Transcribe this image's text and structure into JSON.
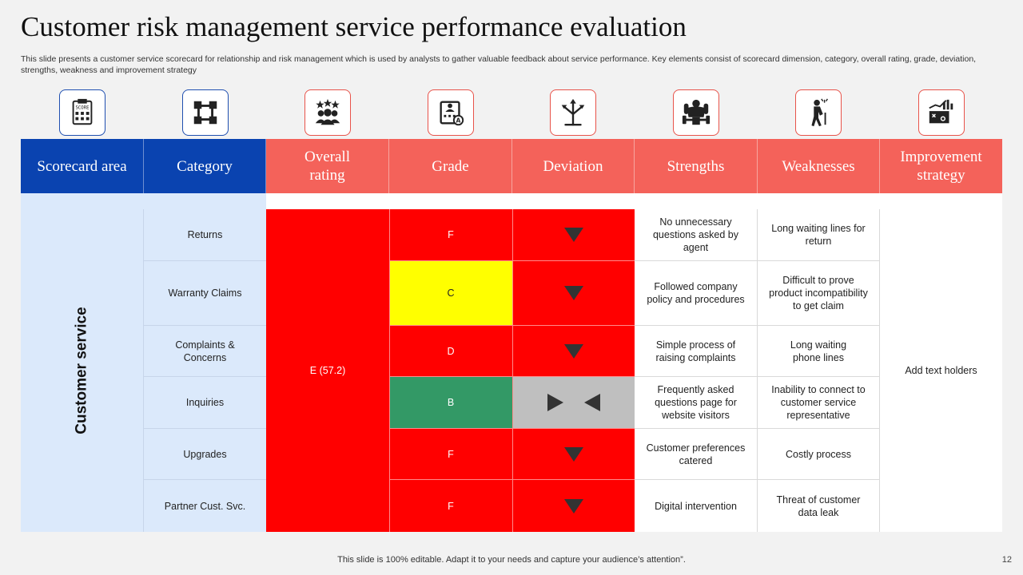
{
  "title": "Customer risk management service performance evaluation",
  "subtitle": "This slide presents a customer service scorecard for relationship and risk management which is used by analysts to gather valuable feedback about service performance. Key elements consist of scorecard dimension, category, overall rating, grade, deviation, strengths, weakness and improvement strategy",
  "icons": [
    "scorecard-icon",
    "category-nodes-icon",
    "rating-team-icon",
    "grade-badge-icon",
    "deviation-arrows-icon",
    "strength-icon",
    "weakness-icon",
    "strategy-icon"
  ],
  "headers": [
    "Scorecard area",
    "Category",
    "Overall rating",
    "Grade",
    "Deviation",
    "Strengths",
    "Weaknesses",
    "Improvement strategy"
  ],
  "area": "Customer service",
  "overall_rating": "E (57.2)",
  "improvement": "Add text holders",
  "rows": [
    {
      "category": "Returns",
      "grade": "F",
      "deviation": "down",
      "strength": "No unnecessary questions asked by agent",
      "weakness": "Long waiting lines for return"
    },
    {
      "category": "Warranty Claims",
      "grade": "C",
      "deviation": "down",
      "strength": "Followed company policy and procedures",
      "weakness": "Difficult to prove product incompatibility to get claim"
    },
    {
      "category": "Complaints & Concerns",
      "grade": "D",
      "deviation": "down",
      "strength": "Simple process of raising complaints",
      "weakness": "Long waiting phone lines"
    },
    {
      "category": "Inquiries",
      "grade": "B",
      "deviation": "neutral",
      "strength": "Frequently asked questions page for website visitors",
      "weakness": "Inability to connect to customer service representative"
    },
    {
      "category": "Upgrades",
      "grade": "F",
      "deviation": "down",
      "strength": "Customer preferences catered",
      "weakness": "Costly process"
    },
    {
      "category": "Partner Cust. Svc.",
      "grade": "F",
      "deviation": "down",
      "strength": "Digital intervention",
      "weakness": "Threat of customer data leak"
    }
  ],
  "colors": {
    "blue": "#0a43b0",
    "coral": "#f4625a",
    "red": "#ff0000",
    "yellow": "#ffff00",
    "green": "#339966",
    "gray": "#bfbfbf"
  },
  "footer": "This slide is 100% editable. Adapt it to your needs and capture your audience’s attention”.",
  "page_number": "12"
}
